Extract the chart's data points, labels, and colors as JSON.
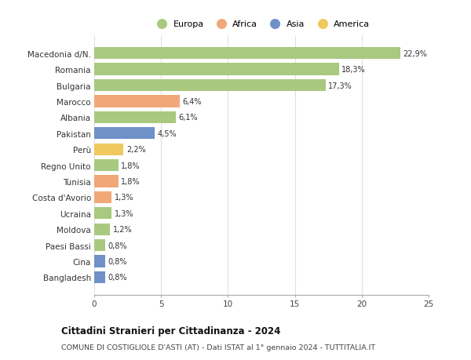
{
  "countries": [
    "Macedonia d/N.",
    "Romania",
    "Bulgaria",
    "Marocco",
    "Albania",
    "Pakistan",
    "Perù",
    "Regno Unito",
    "Tunisia",
    "Costa d'Avorio",
    "Ucraina",
    "Moldova",
    "Paesi Bassi",
    "Cina",
    "Bangladesh"
  ],
  "values": [
    22.9,
    18.3,
    17.3,
    6.4,
    6.1,
    4.5,
    2.2,
    1.8,
    1.8,
    1.3,
    1.3,
    1.2,
    0.8,
    0.8,
    0.8
  ],
  "labels": [
    "22,9%",
    "18,3%",
    "17,3%",
    "6,4%",
    "6,1%",
    "4,5%",
    "2,2%",
    "1,8%",
    "1,8%",
    "1,3%",
    "1,3%",
    "1,2%",
    "0,8%",
    "0,8%",
    "0,8%"
  ],
  "colors": [
    "#a8c97f",
    "#a8c97f",
    "#a8c97f",
    "#f0a878",
    "#a8c97f",
    "#7090c8",
    "#f0c860",
    "#a8c97f",
    "#f0a878",
    "#f0a878",
    "#a8c97f",
    "#a8c97f",
    "#a8c97f",
    "#7090c8",
    "#7090c8"
  ],
  "legend_labels": [
    "Europa",
    "Africa",
    "Asia",
    "America"
  ],
  "legend_colors": [
    "#a8c97f",
    "#f0a878",
    "#7090c8",
    "#f0c860"
  ],
  "title1": "Cittadini Stranieri per Cittadinanza - 2024",
  "title2": "COMUNE DI COSTIGLIOLE D'ASTI (AT) - Dati ISTAT al 1° gennaio 2024 - TUTTITALIA.IT",
  "xlim": [
    0,
    25
  ],
  "xticks": [
    0,
    5,
    10,
    15,
    20,
    25
  ],
  "background_color": "#ffffff",
  "grid_color": "#e0e0e0",
  "bar_height": 0.75
}
